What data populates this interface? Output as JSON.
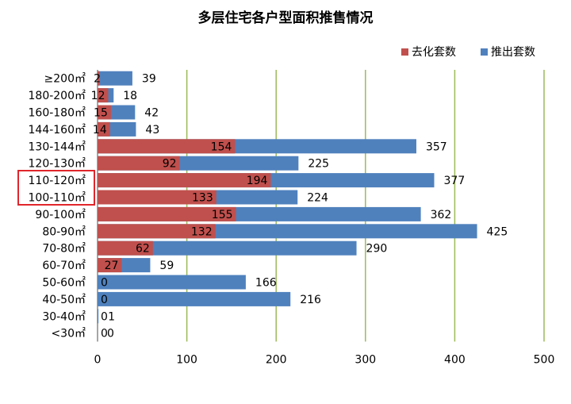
{
  "chart_data": {
    "type": "bar",
    "orientation": "horizontal",
    "title": "多层住宅各户型面积推售情况",
    "categories": [
      "≥200㎡",
      "180-200㎡",
      "160-180㎡",
      "144-160㎡",
      "130-144㎡",
      "120-130㎡",
      "110-120㎡",
      "100-110㎡",
      "90-100㎡",
      "80-90㎡",
      "70-80㎡",
      "60-70㎡",
      "50-60㎡",
      "40-50㎡",
      "30-40㎡",
      "<30㎡"
    ],
    "series": [
      {
        "name": "去化套数",
        "color": "#c0504d",
        "values": [
          2,
          12,
          15,
          14,
          154,
          92,
          194,
          133,
          155,
          132,
          62,
          27,
          0,
          0,
          0,
          0
        ]
      },
      {
        "name": "推出套数",
        "color": "#4f81bd",
        "values": [
          39,
          18,
          42,
          43,
          357,
          225,
          377,
          224,
          362,
          425,
          290,
          59,
          166,
          216,
          1,
          0
        ]
      }
    ],
    "xlim": [
      0,
      500
    ],
    "xticks": [
      "0",
      "100",
      "200",
      "300",
      "400",
      "500"
    ],
    "grid": true,
    "grid_color": "#9bbb59",
    "legend_position": "top-right",
    "highlighted_categories": [
      "110-120㎡",
      "100-110㎡"
    ],
    "highlight_color": "#e0262b"
  }
}
